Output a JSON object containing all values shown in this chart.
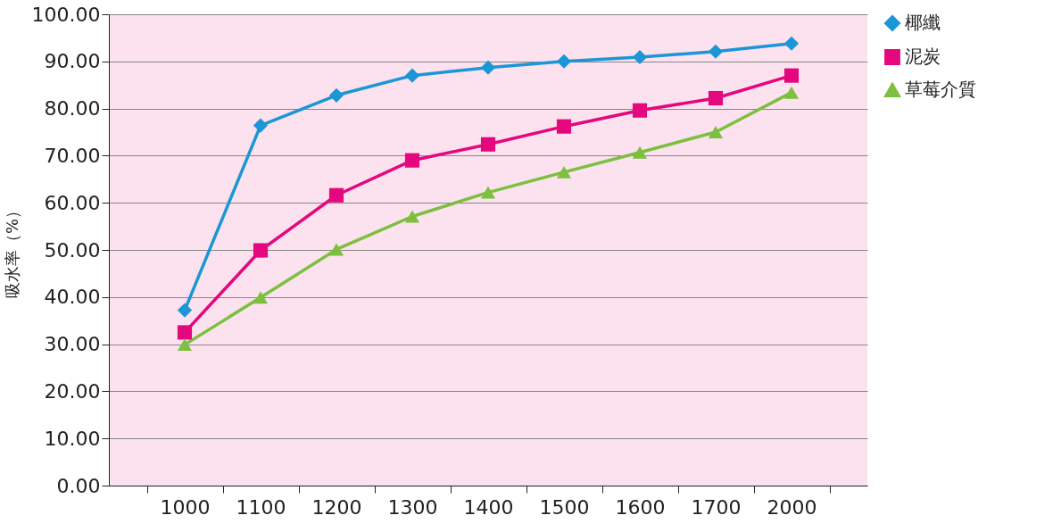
{
  "chart_data": {
    "type": "line",
    "ylabel": "吸水率（%）",
    "categories": [
      "1000",
      "1100",
      "1200",
      "1300",
      "1400",
      "1500",
      "1600",
      "1700",
      "2000"
    ],
    "ylim": [
      0,
      100
    ],
    "yticks": [
      {
        "value": 0,
        "label": "0.00"
      },
      {
        "value": 10,
        "label": "10.00"
      },
      {
        "value": 20,
        "label": "20.00"
      },
      {
        "value": 30,
        "label": "30.00"
      },
      {
        "value": 40,
        "label": "40.00"
      },
      {
        "value": 50,
        "label": "50.00"
      },
      {
        "value": 60,
        "label": "60.00"
      },
      {
        "value": 70,
        "label": "70.00"
      },
      {
        "value": 80,
        "label": "80.00"
      },
      {
        "value": 90,
        "label": "90.00"
      },
      {
        "value": 100,
        "label": "100.00"
      }
    ],
    "grid": "y",
    "legend": "right",
    "series": [
      {
        "name": "椰纖",
        "color": "#1b96d6",
        "marker": "diamond",
        "values": [
          37.2,
          76.4,
          82.8,
          87.0,
          88.7,
          90.0,
          90.9,
          92.1,
          93.8
        ]
      },
      {
        "name": "泥炭",
        "color": "#e5077e",
        "marker": "square",
        "values": [
          32.5,
          49.9,
          61.6,
          69.0,
          72.4,
          76.2,
          79.6,
          82.2,
          87.0
        ]
      },
      {
        "name": "草莓介質",
        "color": "#7dbf3f",
        "marker": "triangle",
        "values": [
          29.9,
          39.9,
          50.1,
          57.1,
          62.2,
          66.5,
          70.7,
          75.0,
          83.4
        ]
      }
    ]
  }
}
